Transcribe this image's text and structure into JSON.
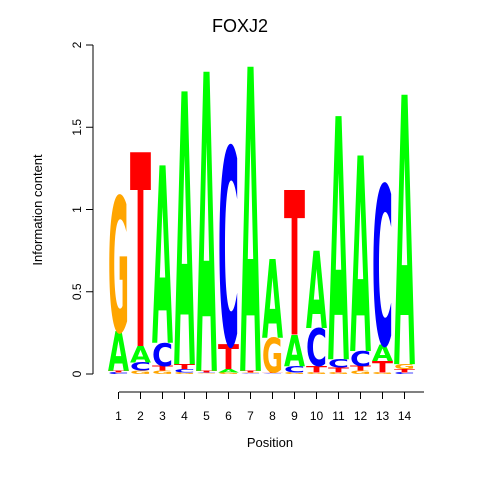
{
  "chart_data": {
    "type": "sequence-logo",
    "title": "FOXJ2",
    "xlabel": "Position",
    "ylabel": "Information content",
    "ylim": [
      0,
      2
    ],
    "yticks": [
      "0",
      "0.5",
      "1",
      "1.5",
      "2"
    ],
    "categories": [
      "1",
      "2",
      "3",
      "4",
      "5",
      "6",
      "7",
      "8",
      "9",
      "10",
      "11",
      "12",
      "13",
      "14"
    ],
    "colors": {
      "A": "#00ff00",
      "C": "#0000ff",
      "G": "#ffa500",
      "T": "#ff0000"
    },
    "positions": [
      [
        {
          "base": "C",
          "height": 0.01
        },
        {
          "base": "T",
          "height": 0.01
        },
        {
          "base": "A",
          "height": 0.24
        },
        {
          "base": "G",
          "height": 0.82
        }
      ],
      [
        {
          "base": "G",
          "height": 0.02
        },
        {
          "base": "C",
          "height": 0.05
        },
        {
          "base": "A",
          "height": 0.1
        },
        {
          "base": "T",
          "height": 1.18
        }
      ],
      [
        {
          "base": "G",
          "height": 0.02
        },
        {
          "base": "T",
          "height": 0.03
        },
        {
          "base": "C",
          "height": 0.14
        },
        {
          "base": "A",
          "height": 1.08
        }
      ],
      [
        {
          "base": "G",
          "height": 0.01
        },
        {
          "base": "C",
          "height": 0.02
        },
        {
          "base": "T",
          "height": 0.03
        },
        {
          "base": "A",
          "height": 1.66
        }
      ],
      [
        {
          "base": "G",
          "height": 0.005
        },
        {
          "base": "C",
          "height": 0.005
        },
        {
          "base": "T",
          "height": 0.01
        },
        {
          "base": "A",
          "height": 1.82
        }
      ],
      [
        {
          "base": "G",
          "height": 0.01
        },
        {
          "base": "A",
          "height": 0.02
        },
        {
          "base": "T",
          "height": 0.15
        },
        {
          "base": "C",
          "height": 1.2
        }
      ],
      [
        {
          "base": "C",
          "height": 0.005
        },
        {
          "base": "G",
          "height": 0.005
        },
        {
          "base": "T",
          "height": 0.01
        },
        {
          "base": "A",
          "height": 1.85
        }
      ],
      [
        {
          "base": "C",
          "height": 0.005
        },
        {
          "base": "T",
          "height": 0.005
        },
        {
          "base": "G",
          "height": 0.21
        },
        {
          "base": "A",
          "height": 0.48
        }
      ],
      [
        {
          "base": "G",
          "height": 0.01
        },
        {
          "base": "C",
          "height": 0.04
        },
        {
          "base": "A",
          "height": 0.19
        },
        {
          "base": "T",
          "height": 0.88
        }
      ],
      [
        {
          "base": "G",
          "height": 0.01
        },
        {
          "base": "T",
          "height": 0.04
        },
        {
          "base": "C",
          "height": 0.23
        },
        {
          "base": "A",
          "height": 0.47
        }
      ],
      [
        {
          "base": "G",
          "height": 0.01
        },
        {
          "base": "T",
          "height": 0.03
        },
        {
          "base": "C",
          "height": 0.05
        },
        {
          "base": "A",
          "height": 1.48
        }
      ],
      [
        {
          "base": "G",
          "height": 0.02
        },
        {
          "base": "T",
          "height": 0.03
        },
        {
          "base": "C",
          "height": 0.09
        },
        {
          "base": "A",
          "height": 1.19
        }
      ],
      [
        {
          "base": "G",
          "height": 0.01
        },
        {
          "base": "T",
          "height": 0.07
        },
        {
          "base": "A",
          "height": 0.1
        },
        {
          "base": "C",
          "height": 0.97
        }
      ],
      [
        {
          "base": "C",
          "height": 0.01
        },
        {
          "base": "T",
          "height": 0.02
        },
        {
          "base": "G",
          "height": 0.03
        },
        {
          "base": "A",
          "height": 1.64
        }
      ]
    ]
  }
}
